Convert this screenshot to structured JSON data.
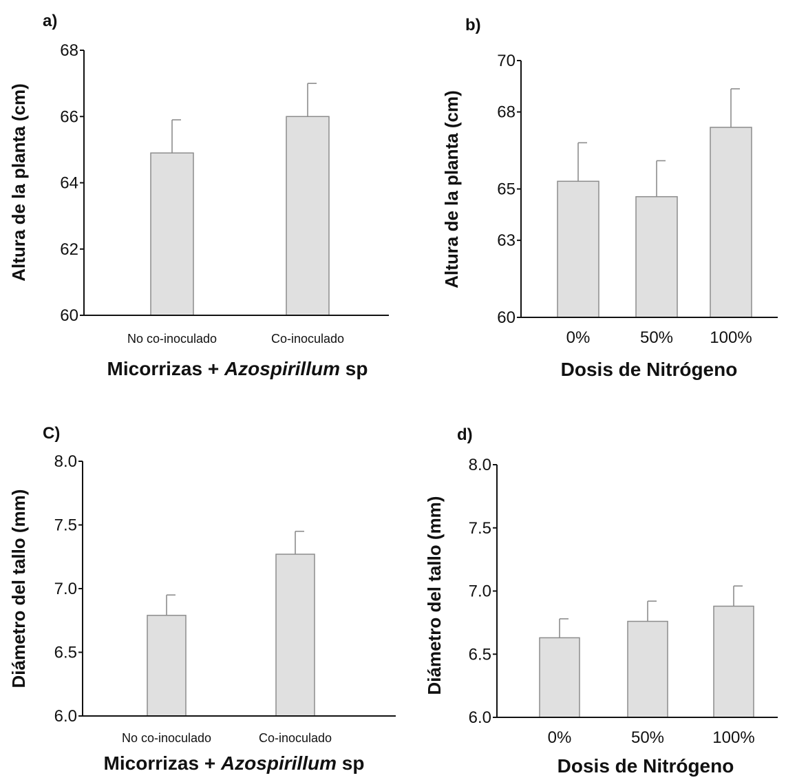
{
  "colors": {
    "bar_fill": "#e0e0e0",
    "bar_stroke": "#8c8c8c",
    "axis": "#111111",
    "error_bar": "#8c8c8c"
  },
  "chart_data": [
    {
      "type": "bar",
      "panel_label": "a)",
      "categories": [
        "No co-inoculado",
        "Co-inoculado"
      ],
      "values": [
        64.9,
        66.0
      ],
      "errors": [
        1.0,
        1.0
      ],
      "ylabel": "Altura de la planta (cm)",
      "xlabel": {
        "parts": [
          {
            "text": "Micorrizas + ",
            "italic": false
          },
          {
            "text": "Azospirillum",
            "italic": true
          },
          {
            "text": " sp",
            "italic": false
          }
        ]
      },
      "ylim": [
        60,
        68
      ],
      "yticks": [
        60,
        62,
        64,
        66,
        68
      ],
      "ytick_labels": [
        "60",
        "62",
        "64",
        "66",
        "68"
      ],
      "grid": false,
      "legend": "none"
    },
    {
      "type": "bar",
      "panel_label": "b)",
      "categories": [
        "0%",
        "50%",
        "100%"
      ],
      "values": [
        65.3,
        64.7,
        67.4
      ],
      "errors": [
        1.5,
        1.4,
        1.5
      ],
      "ylabel": "Altura de la planta (cm)",
      "xlabel": {
        "parts": [
          {
            "text": "Dosis de Nitrógeno",
            "italic": false
          }
        ]
      },
      "ylim": [
        60,
        70
      ],
      "yticks": [
        60,
        63,
        65,
        68,
        70
      ],
      "ytick_labels": [
        "60",
        "63",
        "65",
        "68",
        "70"
      ],
      "grid": false,
      "legend": "none"
    },
    {
      "type": "bar",
      "panel_label": "C)",
      "categories": [
        "No co-inoculado",
        "Co-inoculado"
      ],
      "values": [
        6.79,
        7.27
      ],
      "errors": [
        0.16,
        0.18
      ],
      "ylabel": "Diámetro del tallo (mm)",
      "xlabel": {
        "parts": [
          {
            "text": "Micorrizas + ",
            "italic": false
          },
          {
            "text": "Azospirillum",
            "italic": true
          },
          {
            "text": " sp",
            "italic": false
          }
        ]
      },
      "ylim": [
        6.0,
        8.0
      ],
      "yticks": [
        6.0,
        6.5,
        7.0,
        7.5,
        8.0
      ],
      "ytick_labels": [
        "6.0",
        "6.5",
        "7.0",
        "7.5",
        "8.0"
      ],
      "grid": false,
      "legend": "none"
    },
    {
      "type": "bar",
      "panel_label": "d)",
      "categories": [
        "0%",
        "50%",
        "100%"
      ],
      "values": [
        6.63,
        6.76,
        6.88
      ],
      "errors": [
        0.15,
        0.16,
        0.16
      ],
      "ylabel": "Diámetro del tallo (mm)",
      "xlabel": {
        "parts": [
          {
            "text": "Dosis de Nitrógeno",
            "italic": false
          }
        ]
      },
      "ylim": [
        6.0,
        8.0
      ],
      "yticks": [
        6.0,
        6.5,
        7.0,
        7.5,
        8.0
      ],
      "ytick_labels": [
        "6.0",
        "6.5",
        "7.0",
        "7.5",
        "8.0"
      ],
      "grid": false,
      "legend": "none"
    }
  ]
}
